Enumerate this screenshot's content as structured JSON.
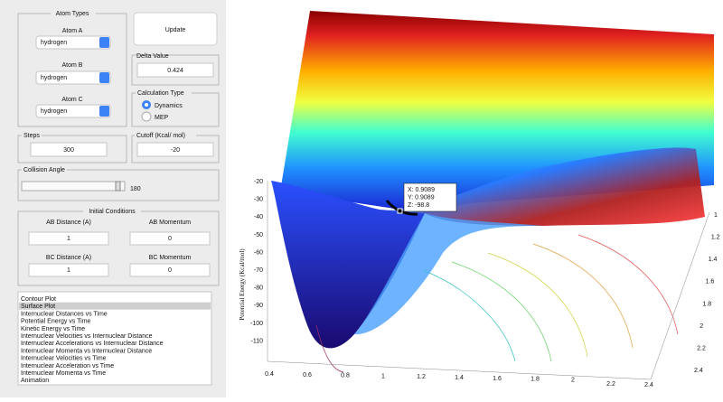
{
  "controls": {
    "atom_types": {
      "title": "Atom Types",
      "atom_a": {
        "label": "Atom A",
        "value": "hydrogen"
      },
      "atom_b": {
        "label": "Atom B",
        "value": "hydrogen"
      },
      "atom_c": {
        "label": "Atom C",
        "value": "hydrogen"
      }
    },
    "update_button": "Update",
    "delta_value": {
      "title": "Delta Value",
      "value": "0.424"
    },
    "calculation_type": {
      "title": "Calculation Type",
      "options": [
        "Dynamics",
        "MEP"
      ]
    },
    "steps": {
      "title": "Steps",
      "value": "300"
    },
    "cutoff": {
      "title": "Cutoff (Kcal/ mol)",
      "value": "-20"
    },
    "collision_angle": {
      "title": "Collision Angle",
      "value": "180"
    },
    "initial_conditions": {
      "title": "Initial Conditions",
      "ab_distance": {
        "label": "AB Distance (A)",
        "value": "1"
      },
      "ab_momentum": {
        "label": "AB Momentum",
        "value": "0"
      },
      "bc_distance": {
        "label": "BC Distance (A)",
        "value": "1"
      },
      "bc_momentum": {
        "label": "BC Momentum",
        "value": "0"
      }
    },
    "plot_list": [
      "Contour Plot",
      "Surface Plot",
      "Internuclear Distances vs Time",
      "Potential Energy vs Time",
      "Kinetic Energy vs Time",
      "Internuclear Velocities vs Internuclear Distance",
      "Internuclear Accelerations vs Internuclear Distance",
      "Internuclear Momenta vs Internuclear Distance",
      "Internuclear Velocities vs Time",
      "Internuclear Acceleration vs Time",
      "Internuclear Momenta vs Time",
      "Animation"
    ]
  },
  "plot": {
    "z_label": "Potential Energy (Kcal/mol)",
    "z_ticks": [
      "-20",
      "-30",
      "-40",
      "-50",
      "-60",
      "-70",
      "-80",
      "-90",
      "-100",
      "-110"
    ],
    "x_ticks": [
      "0.4",
      "0.6",
      "0.8",
      "1",
      "1.2",
      "1.4",
      "1.6",
      "1.8",
      "2",
      "2.2",
      "2.4"
    ],
    "y_ticks": [
      "1",
      "1.2",
      "1.4",
      "1.6",
      "1.8",
      "2",
      "2.2",
      "2.4"
    ],
    "datatip": [
      "X: 0.9089",
      "Y: 0.9089",
      "Z: -98.8"
    ]
  }
}
